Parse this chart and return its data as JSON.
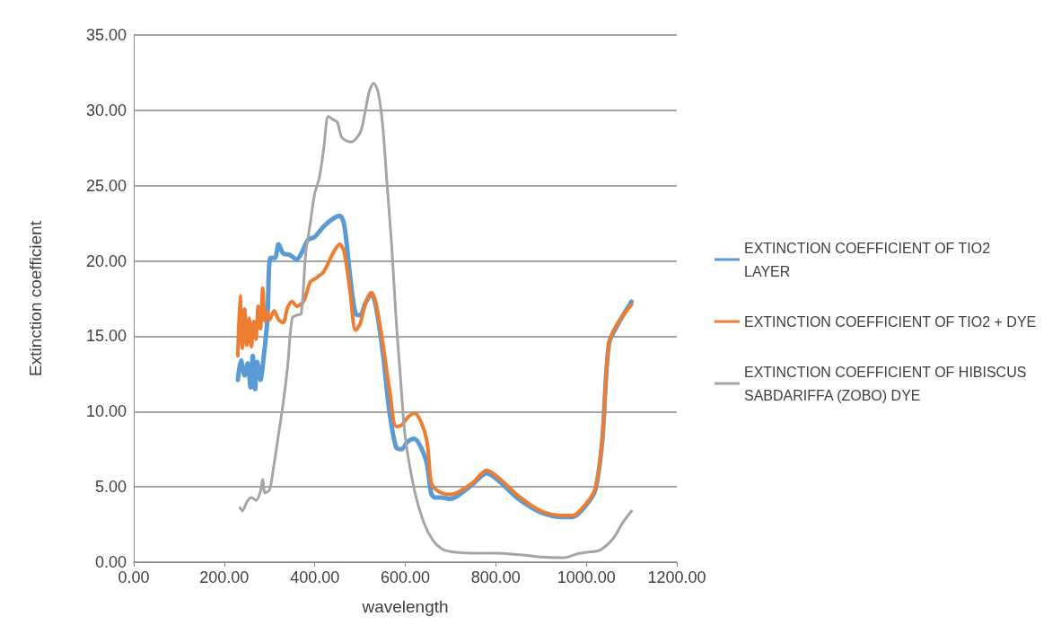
{
  "chart_data": {
    "type": "line",
    "xlabel": "wavelength",
    "ylabel": "Extinction coefficient",
    "xlim": [
      0,
      1200
    ],
    "xticks": [
      {
        "value": 0,
        "label": "0.00"
      },
      {
        "value": 200,
        "label": "200.00"
      },
      {
        "value": 400,
        "label": "400.00"
      },
      {
        "value": 600,
        "label": "600.00"
      },
      {
        "value": 800,
        "label": "800.00"
      },
      {
        "value": 1000,
        "label": "1000.00"
      },
      {
        "value": 1200,
        "label": "1200.00"
      }
    ],
    "ylim": [
      0,
      35
    ],
    "yticks": [
      {
        "value": 0,
        "label": "0.00"
      },
      {
        "value": 5,
        "label": "5.00"
      },
      {
        "value": 10,
        "label": "10.00"
      },
      {
        "value": 15,
        "label": "15.00"
      },
      {
        "value": 20,
        "label": "20.00"
      },
      {
        "value": 25,
        "label": "25.00"
      },
      {
        "value": 30,
        "label": "30.00"
      },
      {
        "value": 35,
        "label": "35.00"
      }
    ],
    "grid": "y",
    "legend": "right",
    "marker": "none",
    "line_style": "solid",
    "series": [
      {
        "name": "EXTINCTION COEFFICIENT OF TIO2 LAYER",
        "color": "#5b9bd5",
        "x": [
          230,
          237,
          245,
          252,
          258,
          263,
          268,
          273,
          280,
          287,
          295,
          302,
          312,
          320,
          330,
          345,
          360,
          372,
          385,
          400,
          420,
          440,
          455,
          465,
          478,
          490,
          500,
          512,
          525,
          535,
          550,
          565,
          580,
          592,
          605,
          620,
          635,
          648,
          657,
          665,
          680,
          700,
          720,
          750,
          780,
          810,
          850,
          900,
          950,
          970,
          1000,
          1020,
          1035,
          1050,
          1070,
          1100
        ],
        "values": [
          12.1,
          13.4,
          12.4,
          13.2,
          11.6,
          13.7,
          11.5,
          13.3,
          12.1,
          13.6,
          16,
          20.2,
          20.2,
          21.1,
          20.5,
          20.4,
          20.1,
          20.6,
          21.4,
          21.6,
          22.3,
          22.8,
          23,
          22.4,
          19,
          16.5,
          16.4,
          17.2,
          17.8,
          17,
          14,
          10,
          7.6,
          7.5,
          8.0,
          8.2,
          7.6,
          6.5,
          4.6,
          4.3,
          4.3,
          4.2,
          4.5,
          5.2,
          5.9,
          5.3,
          4.2,
          3.3,
          3.0,
          3.0,
          3.8,
          4.8,
          8,
          14.5,
          15.8,
          17.3
        ]
      },
      {
        "name": "EXTINCTION COEFFICIENT OF TIO2 + DYE",
        "color": "#ed7d31",
        "x": [
          230,
          235,
          240,
          245,
          250,
          255,
          260,
          265,
          270,
          275,
          280,
          285,
          290,
          295,
          300,
          310,
          320,
          330,
          340,
          350,
          360,
          375,
          390,
          400,
          420,
          440,
          455,
          465,
          478,
          490,
          500,
          512,
          525,
          535,
          550,
          565,
          580,
          592,
          605,
          620,
          635,
          648,
          657,
          665,
          680,
          700,
          720,
          750,
          780,
          810,
          850,
          900,
          950,
          970,
          1000,
          1020,
          1035,
          1050,
          1070,
          1100
        ],
        "values": [
          13.7,
          17.7,
          14.2,
          16.8,
          14.4,
          16.2,
          14.3,
          16.0,
          14.8,
          17.0,
          15.5,
          18.2,
          16.0,
          16.6,
          16.1,
          16.7,
          16.1,
          15.9,
          16.9,
          17.3,
          17.0,
          17.3,
          18.6,
          18.8,
          19.3,
          20.5,
          21.1,
          20.6,
          18,
          15.4,
          15.8,
          17.2,
          17.9,
          17.2,
          14.6,
          11.5,
          9.0,
          9.1,
          9.6,
          9.9,
          9.3,
          8.0,
          5.3,
          4.9,
          4.6,
          4.5,
          4.7,
          5.3,
          6.1,
          5.5,
          4.4,
          3.4,
          3.1,
          3.1,
          3.9,
          4.9,
          8,
          14.5,
          15.9,
          17.1
        ]
      },
      {
        "name": "EXTINCTION COEFFICIENT OF HIBISCUS SABDARIFFA (ZOBO) DYE",
        "color": "#a5a5a5",
        "x": [
          235,
          240,
          250,
          260,
          270,
          280,
          285,
          290,
          300,
          310,
          320,
          330,
          340,
          350,
          360,
          370,
          380,
          390,
          400,
          410,
          420,
          430,
          440,
          450,
          460,
          480,
          500,
          510,
          520,
          530,
          540,
          550,
          560,
          570,
          580,
          590,
          600,
          620,
          640,
          660,
          680,
          700,
          750,
          800,
          850,
          900,
          950,
          980,
          1000,
          1030,
          1060,
          1080,
          1100
        ],
        "values": [
          3.6,
          3.4,
          4.0,
          4.3,
          4.1,
          4.7,
          5.5,
          4.6,
          4.8,
          6.5,
          8.5,
          10.5,
          13,
          16.2,
          16.4,
          16.5,
          20.5,
          22.5,
          24.5,
          25.5,
          27.5,
          29.6,
          29.4,
          29.2,
          28.2,
          27.9,
          28.5,
          29.7,
          31.2,
          31.8,
          31.2,
          29,
          25,
          21,
          16,
          12,
          8.3,
          4.8,
          2.7,
          1.5,
          0.9,
          0.7,
          0.6,
          0.6,
          0.5,
          0.35,
          0.3,
          0.55,
          0.65,
          0.8,
          1.6,
          2.6,
          3.4
        ]
      }
    ]
  }
}
